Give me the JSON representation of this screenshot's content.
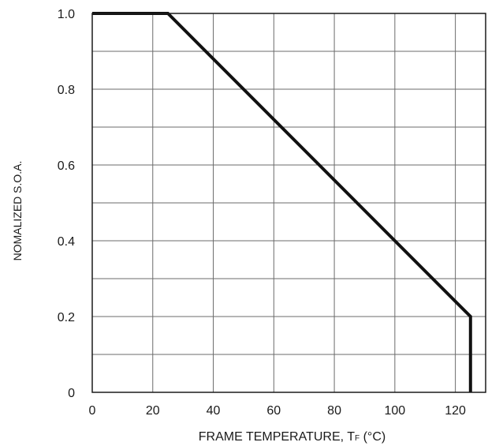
{
  "chart_data": {
    "type": "line",
    "title": "",
    "xlabel": {
      "main": "FRAME TEMPERATURE, T",
      "subscript": "F",
      "unit": " (°C)"
    },
    "ylabel": "NOMALIZED S.O.A.",
    "xlim": [
      0,
      130
    ],
    "ylim": [
      0,
      1.0
    ],
    "x_ticks": [
      0,
      20,
      40,
      60,
      80,
      100,
      120
    ],
    "x_tick_labels": [
      "0",
      "20",
      "40",
      "60",
      "80",
      "100",
      "120"
    ],
    "y_ticks": [
      0,
      0.2,
      0.4,
      0.6,
      0.8,
      1.0
    ],
    "y_tick_labels": [
      "0",
      "0.2",
      "0.4",
      "0.6",
      "0.8",
      "1.0"
    ],
    "grid": true,
    "x_grid_step": 20,
    "y_grid_step": 0.1,
    "series": [
      {
        "x": [
          0,
          25,
          125,
          125
        ],
        "y": [
          1.0,
          1.0,
          0.2,
          0.0
        ],
        "color": "#111111"
      }
    ]
  }
}
